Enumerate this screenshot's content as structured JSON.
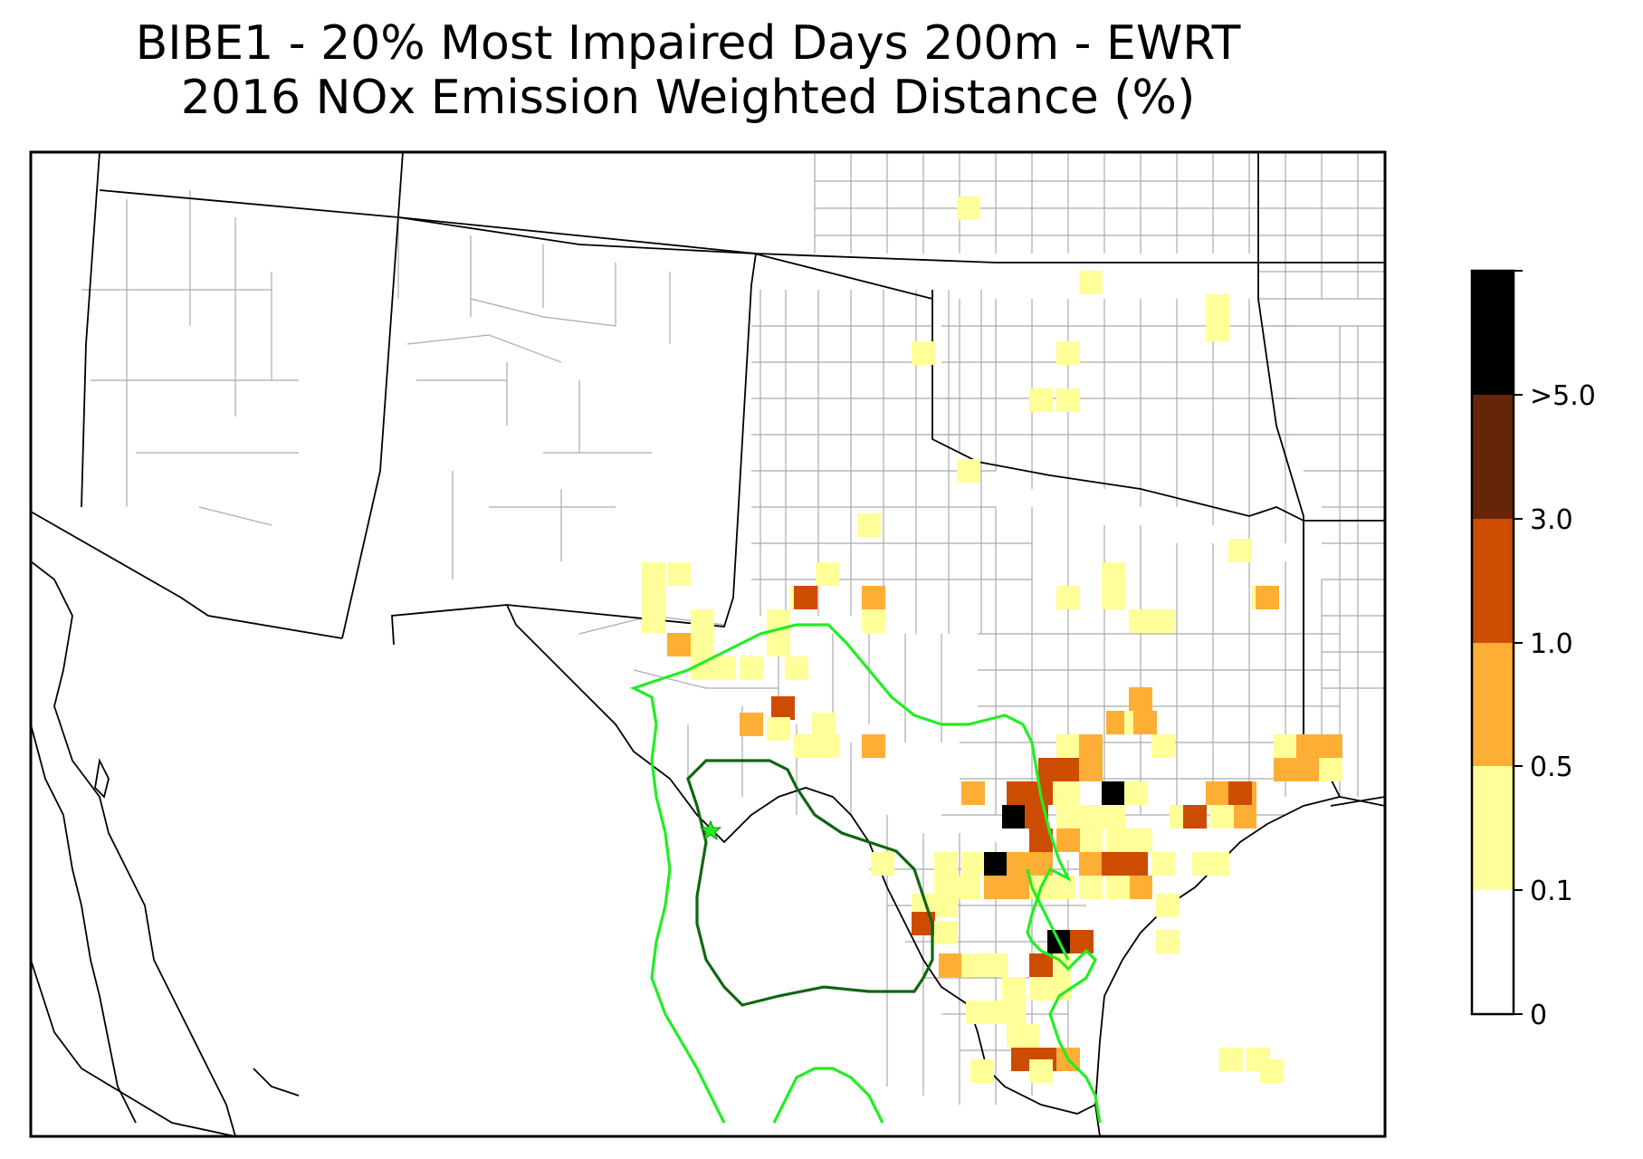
{
  "title": {
    "line1": "BIBE1 - 20% Most Impaired Days 200m - EWRT",
    "line2": "2016 NOx Emission Weighted Distance (%)"
  },
  "colorbar": {
    "levels": [
      {
        "label": "0",
        "color": "#ffffff"
      },
      {
        "label": "0.1",
        "color": "#ffff99"
      },
      {
        "label": "0.5",
        "color": "#fdae35"
      },
      {
        "label": "1.0",
        "color": "#cc4c02"
      },
      {
        "label": "3.0",
        "color": "#662506"
      },
      {
        "label": ">5.0",
        "color": "#000000"
      }
    ]
  },
  "colors": {
    "trajectory_light": "#22ee22",
    "trajectory_dark": "#116611",
    "state_border": "#000000",
    "county_border": "#aaaaaa"
  },
  "markers": {
    "site": {
      "name": "star-icon",
      "label": ""
    }
  }
}
